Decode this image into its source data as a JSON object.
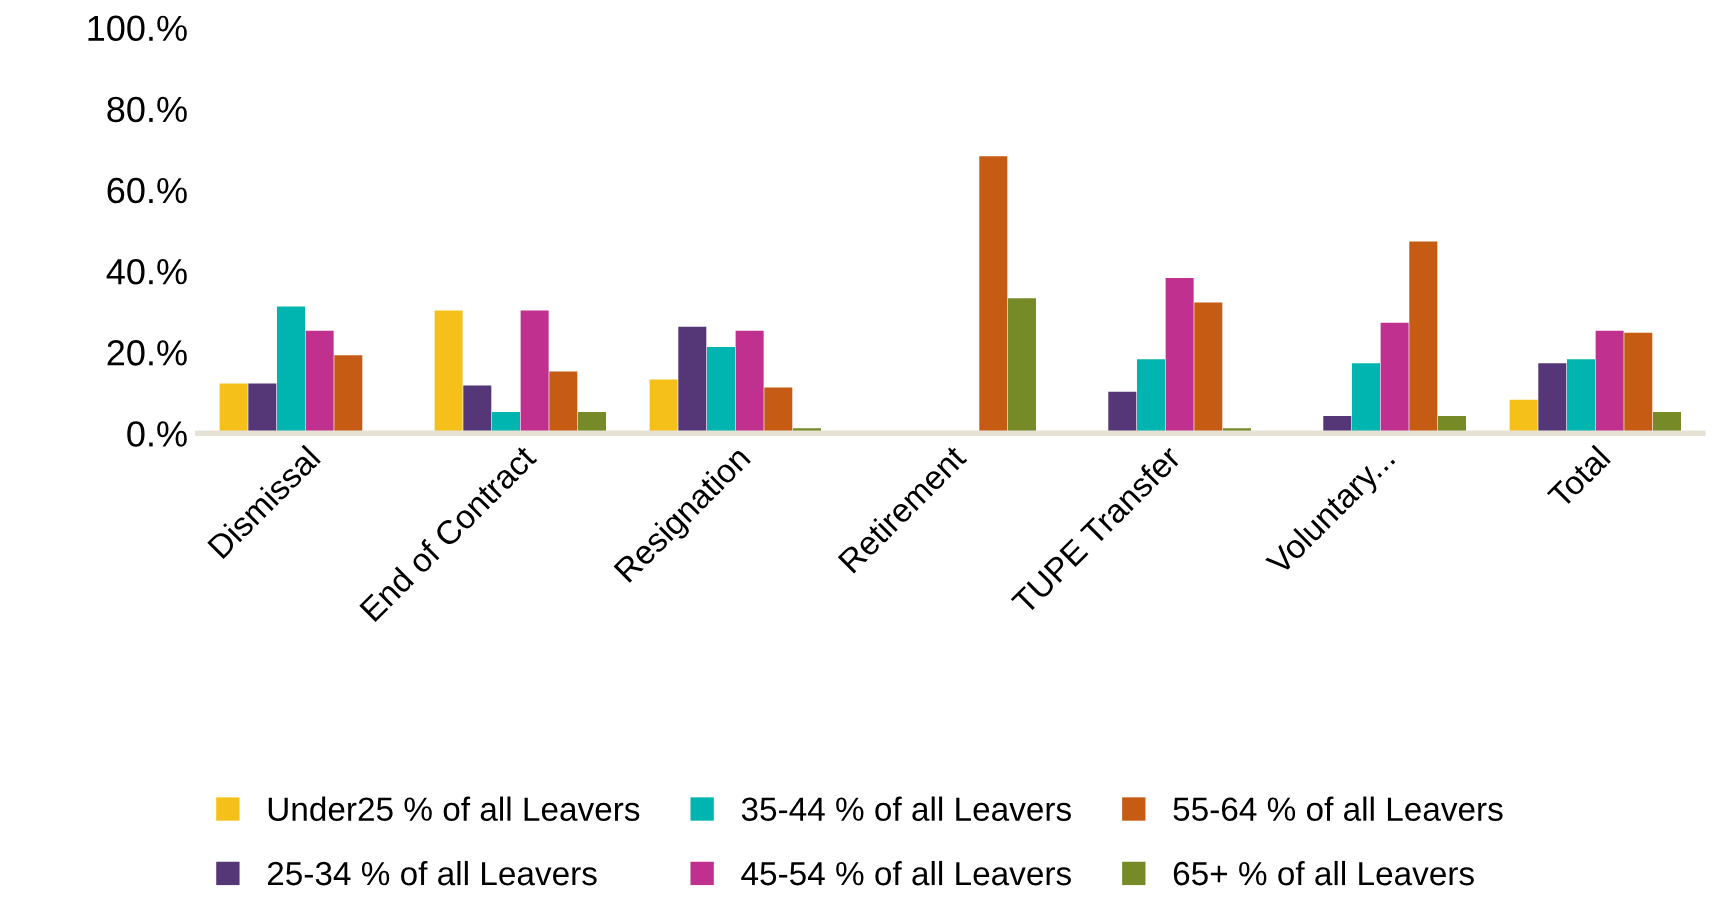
{
  "chart_data": {
    "type": "bar",
    "categories": [
      "Dismissal",
      "End of Contract",
      "Resignation",
      "Retirement",
      "TUPE Transfer",
      "Voluntary...",
      "Total"
    ],
    "ylim": [
      0,
      100
    ],
    "yticks": [
      {
        "value": 0,
        "label": "0.%"
      },
      {
        "value": 20,
        "label": "20.%"
      },
      {
        "value": 40,
        "label": "40.%"
      },
      {
        "value": 60,
        "label": "60.%"
      },
      {
        "value": 80,
        "label": "80.%"
      },
      {
        "value": 100,
        "label": "100.%"
      }
    ],
    "grid": false,
    "legend": "bottom",
    "series": [
      {
        "name": "Under25 % of all Leavers",
        "color": "#f5c01a",
        "values": [
          12,
          30,
          13,
          0,
          0,
          0,
          8
        ]
      },
      {
        "name": "25-34 % of all Leavers",
        "color": "#553778",
        "values": [
          12,
          11.5,
          26,
          0,
          10,
          4,
          17
        ]
      },
      {
        "name": "35-44 % of all Leavers",
        "color": "#00b5b0",
        "values": [
          31,
          5,
          21,
          0,
          18,
          17,
          18
        ]
      },
      {
        "name": "45-54 % of all Leavers",
        "color": "#c0318f",
        "values": [
          25,
          30,
          25,
          0,
          38,
          27,
          25
        ]
      },
      {
        "name": "55-64 % of all Leavers",
        "color": "#c65b14",
        "values": [
          19,
          15,
          11,
          68,
          32,
          47,
          24.5
        ]
      },
      {
        "name": "65+ % of all Leavers",
        "color": "#768b28",
        "values": [
          0,
          5,
          1,
          33,
          1,
          4,
          5
        ]
      }
    ]
  }
}
